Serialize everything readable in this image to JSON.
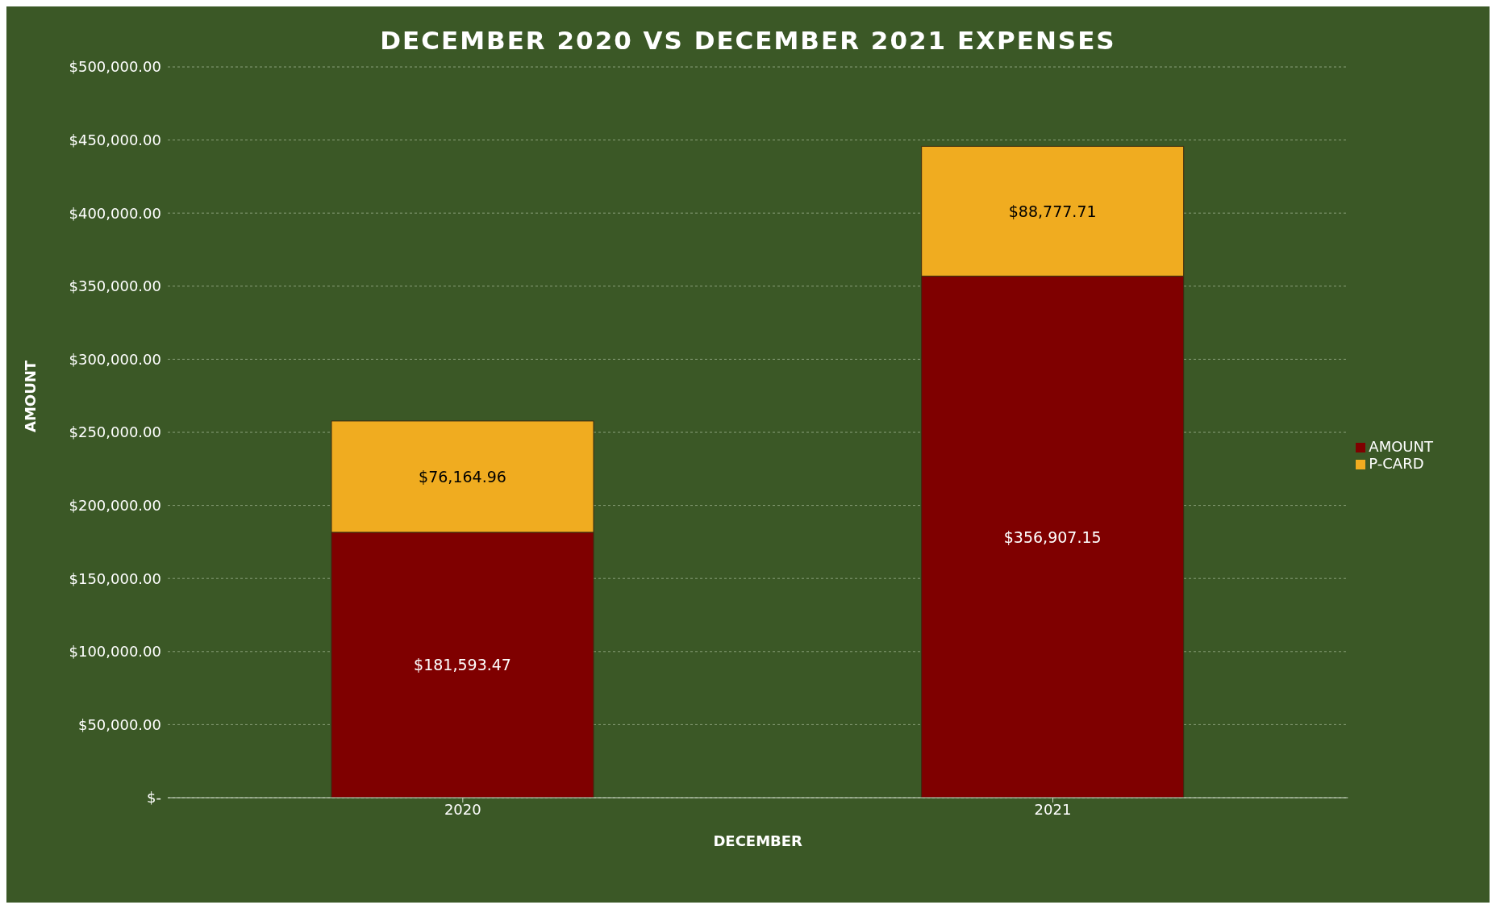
{
  "chart_data": {
    "type": "bar",
    "title": "DECEMBER 2020 VS DECEMBER 2021 EXPENSES",
    "xlabel": "DECEMBER",
    "ylabel": "AMOUNT",
    "categories": [
      "2020",
      "2021"
    ],
    "stacked": true,
    "series": [
      {
        "name": "AMOUNT",
        "color": "#7f0000",
        "values": [
          181593.47,
          356907.15
        ],
        "value_labels": [
          "$181,593.47",
          "$356,907.15"
        ]
      },
      {
        "name": "P-CARD",
        "color": "#f0ac20",
        "values": [
          76164.96,
          88777.71
        ],
        "value_labels": [
          "$76,164.96",
          "$88,777.71"
        ]
      }
    ],
    "ylim": [
      0,
      500000
    ],
    "yticks": [
      {
        "value": 0,
        "label": "$-"
      },
      {
        "value": 50000,
        "label": "$50,000.00"
      },
      {
        "value": 100000,
        "label": "$100,000.00"
      },
      {
        "value": 150000,
        "label": "$150,000.00"
      },
      {
        "value": 200000,
        "label": "$200,000.00"
      },
      {
        "value": 250000,
        "label": "$250,000.00"
      },
      {
        "value": 300000,
        "label": "$300,000.00"
      },
      {
        "value": 350000,
        "label": "$350,000.00"
      },
      {
        "value": 400000,
        "label": "$400,000.00"
      },
      {
        "value": 450000,
        "label": "$450,000.00"
      },
      {
        "value": 500000,
        "label": "$500,000.00"
      }
    ],
    "grid": "y",
    "legend": "right"
  }
}
